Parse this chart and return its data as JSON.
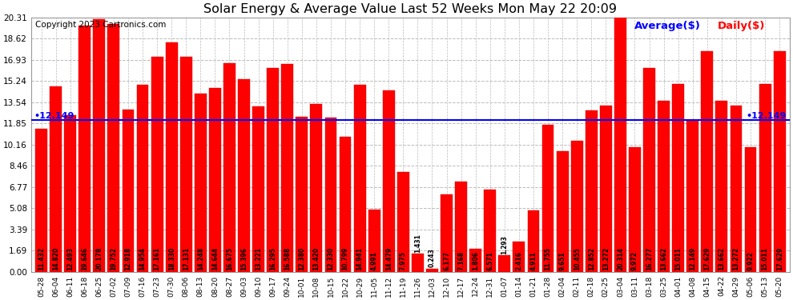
{
  "title": "Solar Energy & Average Value Last 52 Weeks Mon May 22 20:09",
  "copyright": "Copyright 2023 Cartronics.com",
  "average_label": "Average($)",
  "daily_label": "Daily($)",
  "average_value": 12.149,
  "categories": [
    "05-28",
    "06-04",
    "06-11",
    "06-18",
    "06-25",
    "07-02",
    "07-09",
    "07-16",
    "07-23",
    "07-30",
    "08-06",
    "08-13",
    "08-20",
    "08-27",
    "09-03",
    "09-10",
    "09-17",
    "09-24",
    "10-01",
    "10-08",
    "10-15",
    "10-22",
    "10-29",
    "11-05",
    "11-12",
    "11-19",
    "11-26",
    "12-03",
    "12-10",
    "12-17",
    "12-24",
    "12-31",
    "01-07",
    "01-14",
    "01-21",
    "01-28",
    "02-04",
    "02-11",
    "02-18",
    "02-25",
    "03-04",
    "03-11",
    "03-18",
    "03-25",
    "04-01",
    "04-08",
    "04-15",
    "04-22",
    "04-29",
    "05-06",
    "05-13",
    "05-20"
  ],
  "values": [
    11.432,
    14.82,
    12.493,
    19.646,
    20.178,
    19.752,
    12.918,
    14.954,
    17.161,
    18.33,
    17.131,
    14.248,
    14.644,
    16.675,
    15.396,
    13.221,
    16.295,
    16.588,
    12.38,
    13.42,
    12.33,
    10.799,
    14.941,
    4.991,
    14.479,
    7.975,
    1.431,
    0.243,
    6.177,
    7.168,
    1.806,
    6.571,
    1.293,
    2.416,
    4.911,
    11.755,
    9.651,
    10.455,
    12.852,
    13.272,
    20.314,
    9.972,
    16.277,
    13.662,
    15.011,
    12.149,
    17.629,
    13.662,
    13.272,
    9.922,
    15.011,
    17.629
  ],
  "bar_color": "#ff0000",
  "avg_line_color": "#0000ff",
  "bg_color": "#ffffff",
  "grid_color": "#bbbbbb",
  "ylim_max": 20.31,
  "yticks": [
    0.0,
    1.69,
    3.39,
    5.08,
    6.77,
    8.46,
    10.16,
    11.85,
    13.54,
    15.24,
    16.93,
    18.62,
    20.31
  ],
  "value_fontsize": 5.5,
  "title_fontsize": 11.5,
  "copyright_fontsize": 7.5,
  "legend_fontsize": 9.5
}
